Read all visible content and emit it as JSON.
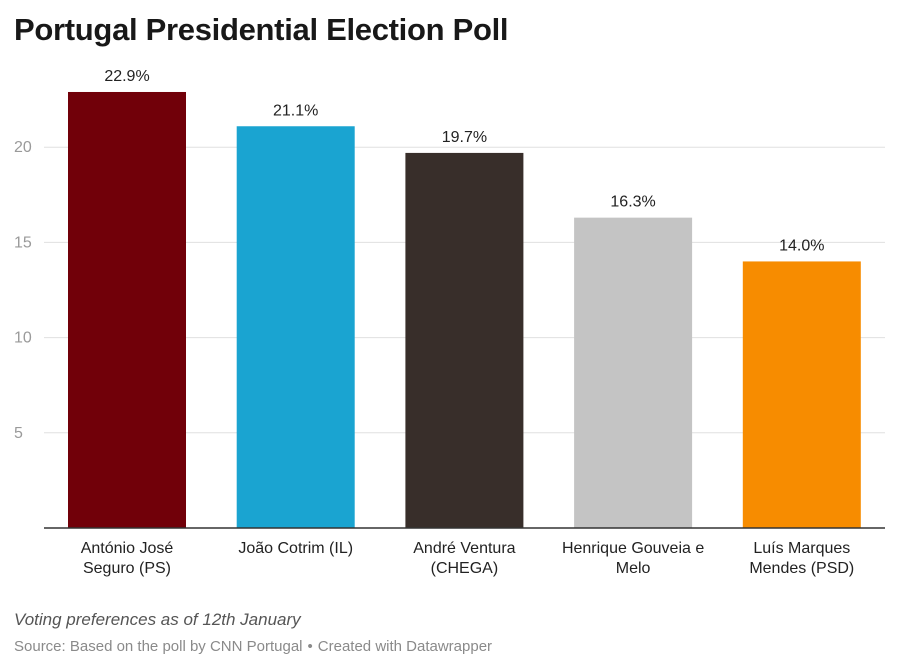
{
  "header": {
    "title": "Portugal Presidential Election Poll"
  },
  "footer": {
    "note": "Voting preferences as of 12th January",
    "source_prefix": "Source:",
    "source_text": "Based on the poll by CNN Portugal",
    "separator": "•",
    "credit": "Created with Datawrapper"
  },
  "chart_data": {
    "type": "bar",
    "title": "Portugal Presidential Election Poll",
    "xlabel": "",
    "ylabel": "",
    "categories": [
      [
        "António José",
        "Seguro (PS)"
      ],
      [
        "João Cotrim (IL)"
      ],
      [
        "André Ventura",
        "(CHEGA)"
      ],
      [
        "Henrique Gouveia e",
        "Melo"
      ],
      [
        "Luís Marques",
        "Mendes (PSD)"
      ]
    ],
    "values": [
      22.9,
      21.1,
      19.7,
      16.3,
      14.0
    ],
    "value_labels": [
      "22.9%",
      "21.1%",
      "19.7%",
      "16.3%",
      "14.0%"
    ],
    "colors": [
      "#710009",
      "#1aa4d1",
      "#382e2a",
      "#c4c4c4",
      "#f78c00"
    ],
    "ylim": [
      0,
      25
    ],
    "yticks": [
      5,
      10,
      15,
      20
    ],
    "ytick_labels": [
      "5",
      "10",
      "15",
      "20"
    ],
    "grid": true,
    "legend": "none"
  }
}
